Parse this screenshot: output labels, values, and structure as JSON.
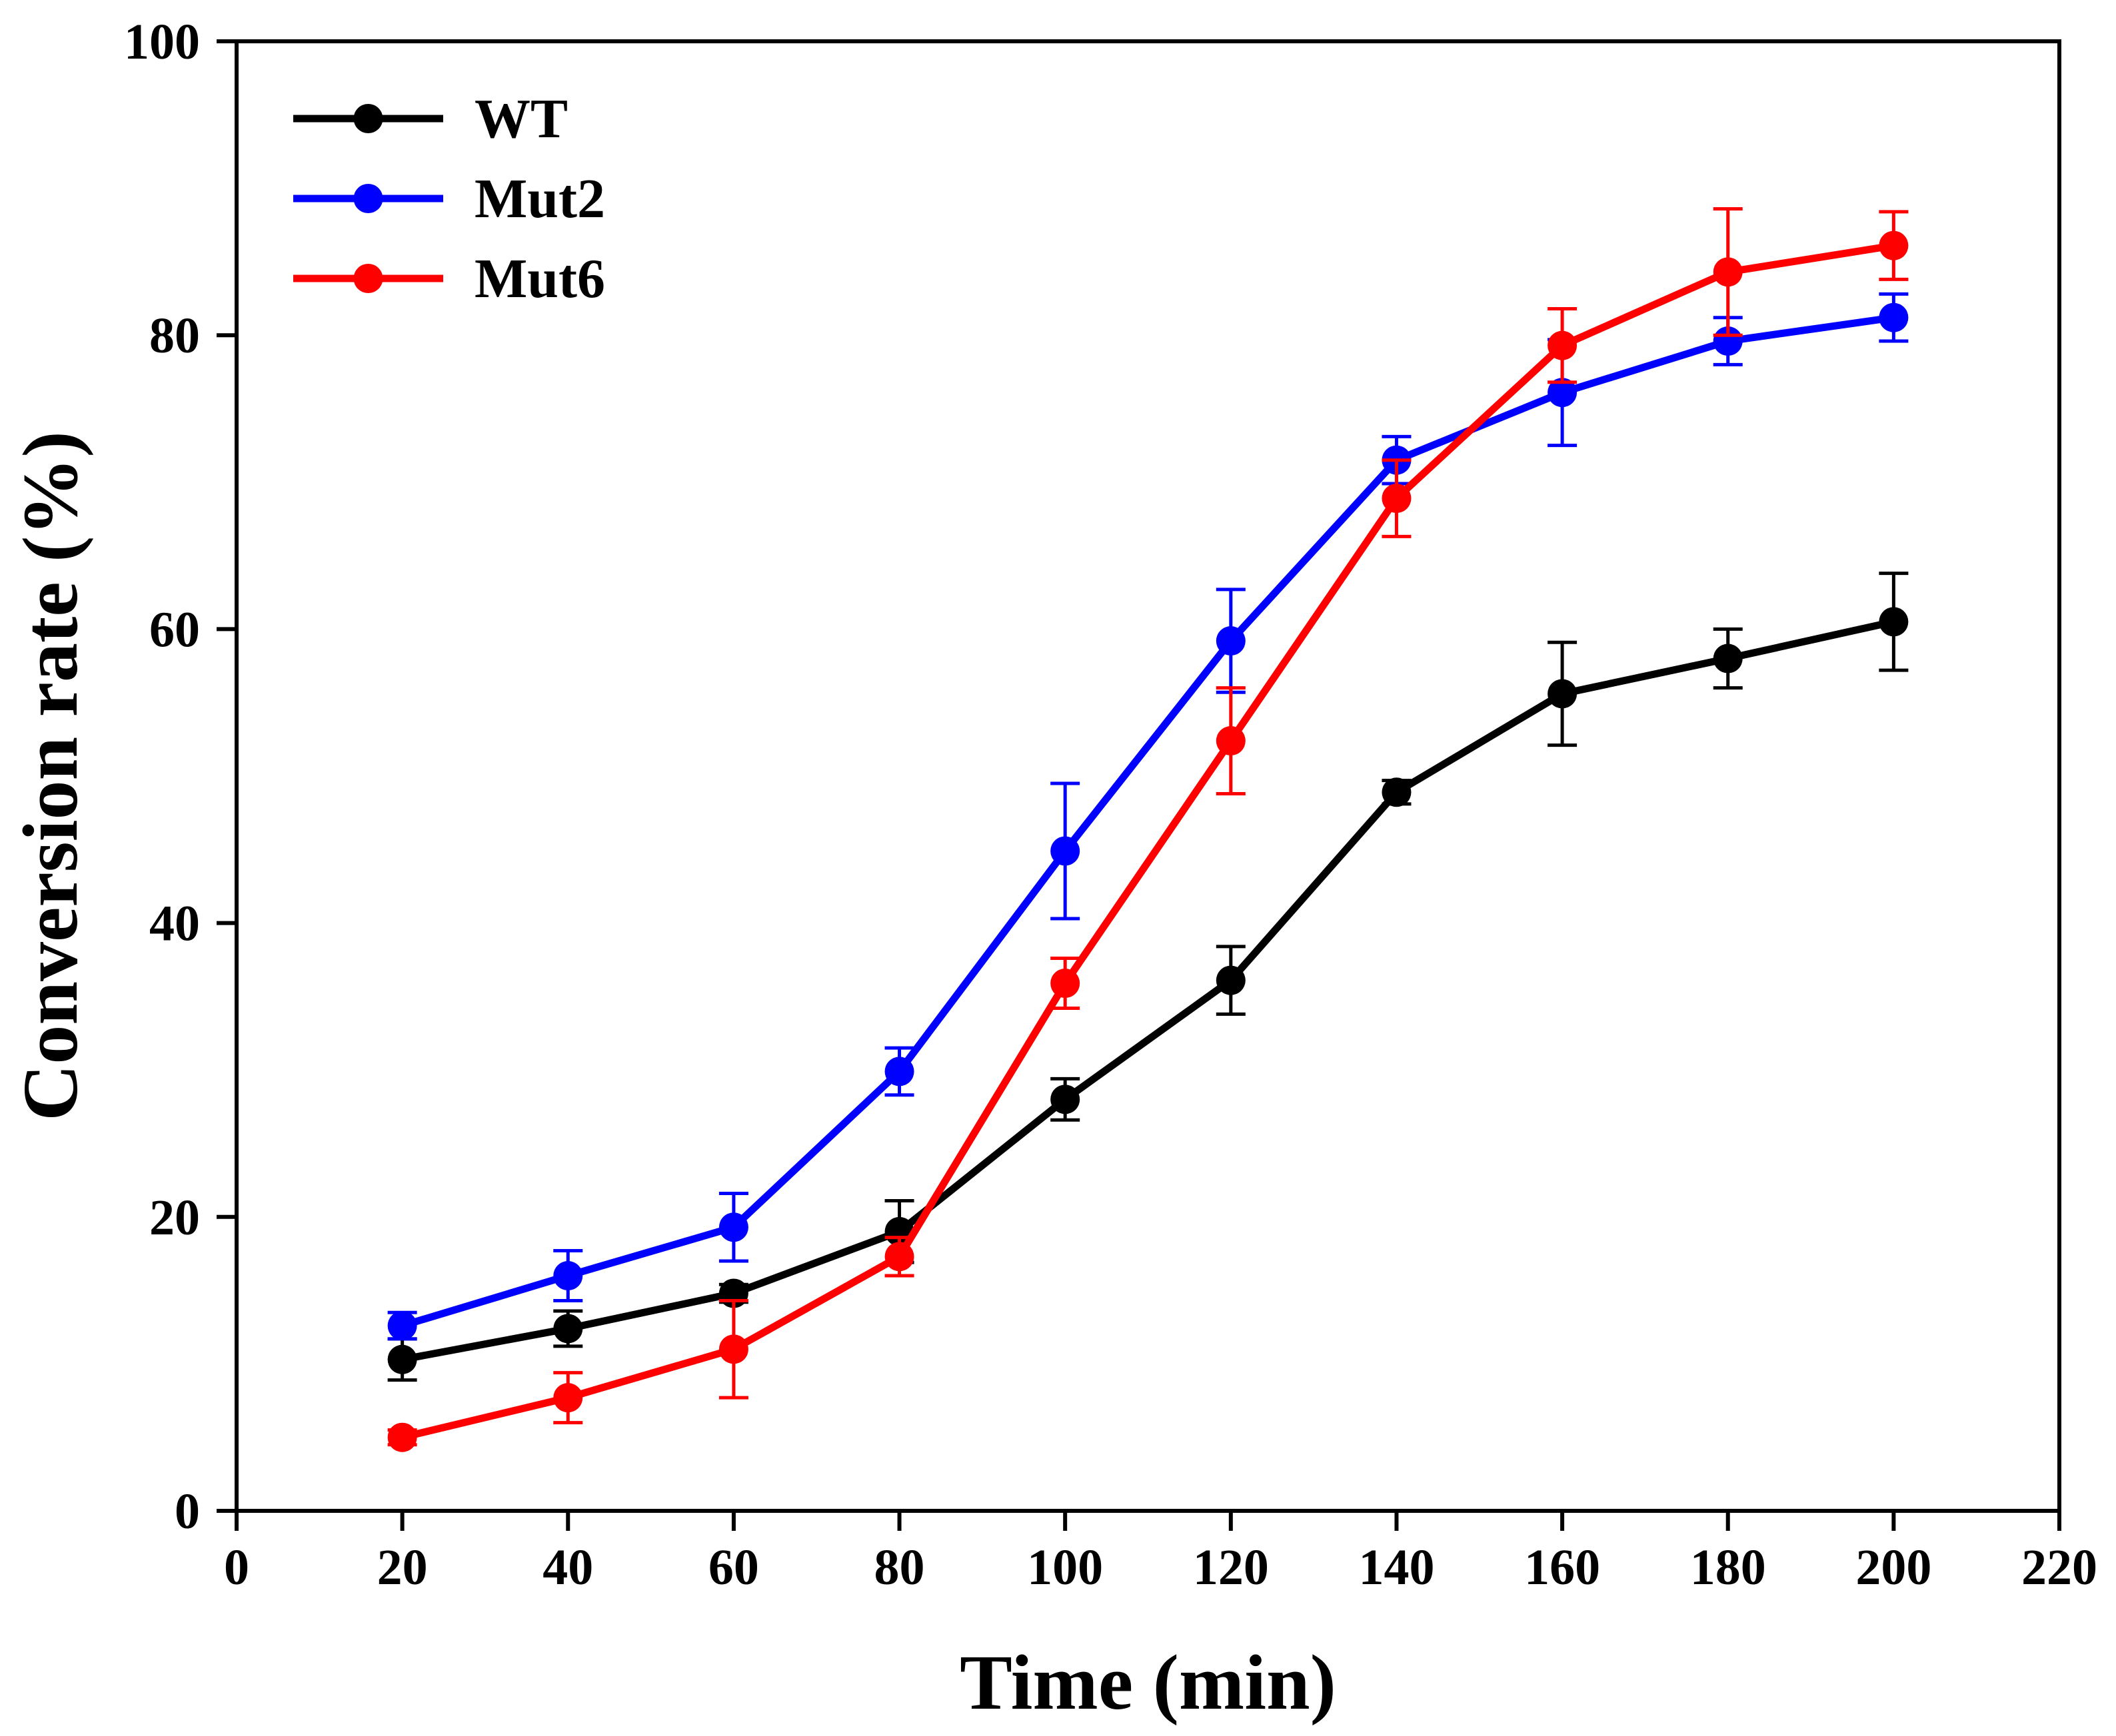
{
  "chart_data": {
    "type": "line",
    "xlabel": "Time (min)",
    "ylabel": "Conversion rate (%)",
    "xlim": [
      0,
      220
    ],
    "ylim": [
      0,
      100
    ],
    "xticks": [
      0,
      20,
      40,
      60,
      80,
      100,
      120,
      140,
      160,
      180,
      200,
      220
    ],
    "yticks": [
      0,
      20,
      40,
      60,
      80,
      100
    ],
    "grid": false,
    "legend_position": "top-left",
    "x": [
      20,
      40,
      60,
      80,
      100,
      120,
      140,
      160,
      180,
      200
    ],
    "series": [
      {
        "name": "WT",
        "color": "#000000",
        "values": [
          10.3,
          12.4,
          14.8,
          19.0,
          28.0,
          36.1,
          48.9,
          55.6,
          58.0,
          60.5
        ],
        "errors": [
          1.4,
          1.2,
          0.6,
          2.1,
          1.4,
          2.3,
          0.8,
          3.5,
          2.0,
          3.3
        ]
      },
      {
        "name": "Mut2",
        "color": "#0000ff",
        "values": [
          12.6,
          16.0,
          19.3,
          29.9,
          44.9,
          59.2,
          71.5,
          76.1,
          79.6,
          81.2
        ],
        "errors": [
          0.9,
          1.7,
          2.3,
          1.6,
          4.6,
          3.5,
          1.6,
          3.6,
          1.6,
          1.6
        ]
      },
      {
        "name": "Mut6",
        "color": "#ff0000",
        "values": [
          5.0,
          7.7,
          11.0,
          17.3,
          35.9,
          52.4,
          68.9,
          79.3,
          84.3,
          86.1
        ],
        "errors": [
          0.5,
          1.7,
          3.3,
          1.3,
          1.7,
          3.6,
          2.6,
          2.5,
          4.3,
          2.3
        ]
      }
    ]
  }
}
